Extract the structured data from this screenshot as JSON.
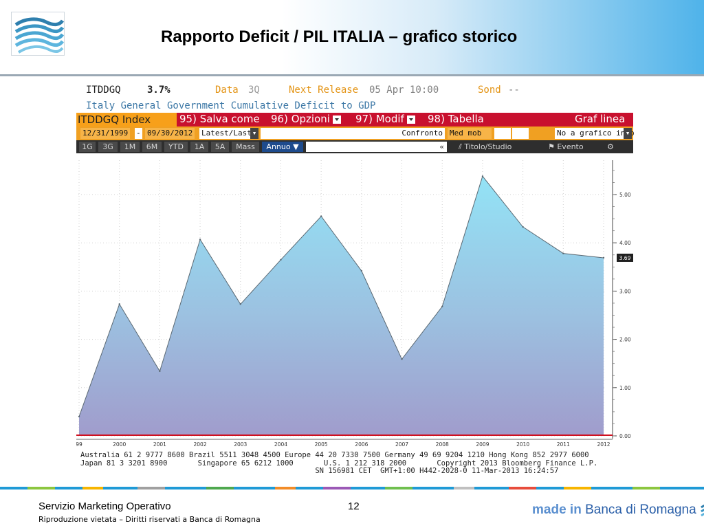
{
  "slide": {
    "title": "Rapporto Deficit / PIL ITALIA – grafico storico",
    "footer_left": "Servizio Marketing Operativo",
    "footer_sub": "Riproduzione vietata – Diritti riservati a Banca di Romagna",
    "page_number": "12",
    "brand": {
      "made_in": "made in",
      "bank": "Banca di Romagna"
    },
    "colors": {
      "accent_blue": "#4fb3ea",
      "terminal_red": "#c8102e",
      "terminal_orange": "#f0a022",
      "area_top": "#93e3f6",
      "area_bottom": "#a09ccc"
    }
  },
  "terminal": {
    "ticker": "ITDDGQ",
    "last": "3.7%",
    "data_label": "Data",
    "data_value": "3Q",
    "next_release_label": "Next Release",
    "next_release_value": "05 Apr 10:00",
    "sond_label": "Sond",
    "sond_value": "--",
    "description": "Italy General Government Cumulative Deficit to GDP",
    "index_field": "ITDDGQ Index",
    "menu": [
      "95) Salva come",
      "96) Opzioni",
      "97) Modif",
      "98) Tabella"
    ],
    "chart_mode": "Graf linea",
    "date_from": "12/31/1999",
    "date_sep": "-",
    "date_to": "09/30/2012",
    "value_mode": "Latest/Last",
    "compare": "Confronto",
    "moving_avg": "Med mob",
    "no_chart_info": "No a grafico info",
    "periods": [
      "1G",
      "3G",
      "1M",
      "6M",
      "YTD",
      "1A",
      "5A",
      "Mass"
    ],
    "selected_period": "Annuo",
    "search_arrow": "«",
    "title_study": "Titolo/Studio",
    "event": "Evento",
    "last_value_tag": "3.69",
    "footer_line1": "Australia 61 2 9777 8600 Brazil 5511 3048 4500 Europe 44 20 7330 7500 Germany 49 69 9204 1210 Hong Kong 852 2977 6000",
    "footer_line2": "Japan 81 3 3201 8900       Singapore 65 6212 1000       U.S. 1 212 318 2000       Copyright 2013 Bloomberg Finance L.P.",
    "footer_line3": "                                                      SN 156981 CET  GMT+1:00 H442-2028-0 11-Mar-2013 16:24:57"
  },
  "chart_data": {
    "type": "area",
    "x": [
      "99",
      "2000",
      "2001",
      "2002",
      "2003",
      "2004",
      "2005",
      "2006",
      "2007",
      "2008",
      "2009",
      "2010",
      "2011",
      "2012"
    ],
    "values": [
      0.4,
      2.73,
      1.34,
      4.07,
      2.73,
      3.65,
      4.55,
      3.42,
      1.59,
      2.68,
      5.38,
      4.33,
      3.78,
      3.69
    ],
    "yticks": [
      "0.00",
      "1.00",
      "2.00",
      "3.00",
      "4.00",
      "5.00"
    ],
    "ylim": [
      0,
      5.8
    ],
    "grid": true,
    "baseline": 0
  }
}
